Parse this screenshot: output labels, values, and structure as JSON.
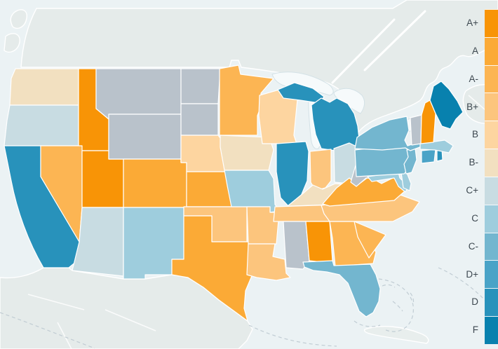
{
  "map": {
    "type": "choropleth",
    "region": "united-states-grades",
    "colors": {
      "ocean": "#ebf2f4",
      "foreign_land": "#e5ebea",
      "lakes": "#f6fafb",
      "no_data": "#b9c2cb",
      "state_border": "#ffffff"
    },
    "states": [
      {
        "id": "WA",
        "name": "Washington",
        "grade": "B-"
      },
      {
        "id": "OR",
        "name": "Oregon",
        "grade": "C+"
      },
      {
        "id": "CA",
        "name": "California",
        "grade": "D"
      },
      {
        "id": "ID",
        "name": "Idaho",
        "grade": "A+"
      },
      {
        "id": "NV",
        "name": "Nevada",
        "grade": "A-"
      },
      {
        "id": "UT",
        "name": "Utah",
        "grade": "A+"
      },
      {
        "id": "AZ",
        "name": "Arizona",
        "grade": "C+"
      },
      {
        "id": "MT",
        "name": "Montana",
        "grade": null
      },
      {
        "id": "WY",
        "name": "Wyoming",
        "grade": null
      },
      {
        "id": "CO",
        "name": "Colorado",
        "grade": "A"
      },
      {
        "id": "NM",
        "name": "New Mexico",
        "grade": "C"
      },
      {
        "id": "ND",
        "name": "North Dakota",
        "grade": null
      },
      {
        "id": "SD",
        "name": "South Dakota",
        "grade": null
      },
      {
        "id": "NE",
        "name": "Nebraska",
        "grade": "B"
      },
      {
        "id": "KS",
        "name": "Kansas",
        "grade": "A"
      },
      {
        "id": "OK",
        "name": "Oklahoma",
        "grade": "B+"
      },
      {
        "id": "TX",
        "name": "Texas",
        "grade": "A"
      },
      {
        "id": "MN",
        "name": "Minnesota",
        "grade": "A-"
      },
      {
        "id": "IA",
        "name": "Iowa",
        "grade": "B-"
      },
      {
        "id": "MO",
        "name": "Missouri",
        "grade": "C"
      },
      {
        "id": "AR",
        "name": "Arkansas",
        "grade": "B+"
      },
      {
        "id": "LA",
        "name": "Louisiana",
        "grade": "B+"
      },
      {
        "id": "WI",
        "name": "Wisconsin",
        "grade": "B"
      },
      {
        "id": "IL",
        "name": "Illinois",
        "grade": "D"
      },
      {
        "id": "MI",
        "name": "Michigan",
        "grade": "D"
      },
      {
        "id": "IN",
        "name": "Indiana",
        "grade": "B+"
      },
      {
        "id": "OH",
        "name": "Ohio",
        "grade": "C+"
      },
      {
        "id": "KY",
        "name": "Kentucky",
        "grade": "B-"
      },
      {
        "id": "TN",
        "name": "Tennessee",
        "grade": "B+"
      },
      {
        "id": "MS",
        "name": "Mississippi",
        "grade": null
      },
      {
        "id": "AL",
        "name": "Alabama",
        "grade": "A+"
      },
      {
        "id": "GA",
        "name": "Georgia",
        "grade": "A-"
      },
      {
        "id": "SC",
        "name": "South Carolina",
        "grade": "A-"
      },
      {
        "id": "NC",
        "name": "North Carolina",
        "grade": "B+"
      },
      {
        "id": "VA",
        "name": "Virginia",
        "grade": "A"
      },
      {
        "id": "WV",
        "name": "West Virginia",
        "grade": null
      },
      {
        "id": "MD",
        "name": "Maryland",
        "grade": "C"
      },
      {
        "id": "DE",
        "name": "Delaware",
        "grade": "C"
      },
      {
        "id": "PA",
        "name": "Pennsylvania",
        "grade": "C-"
      },
      {
        "id": "NJ",
        "name": "New Jersey",
        "grade": "C-"
      },
      {
        "id": "NY",
        "name": "New York",
        "grade": "C-"
      },
      {
        "id": "CT",
        "name": "Connecticut",
        "grade": "D+"
      },
      {
        "id": "RI",
        "name": "Rhode Island",
        "grade": "D"
      },
      {
        "id": "MA",
        "name": "Massachusetts",
        "grade": "C"
      },
      {
        "id": "VT",
        "name": "Vermont",
        "grade": null
      },
      {
        "id": "NH",
        "name": "New Hampshire",
        "grade": "A+"
      },
      {
        "id": "ME",
        "name": "Maine",
        "grade": "F"
      },
      {
        "id": "FL",
        "name": "Florida",
        "grade": "C-"
      }
    ]
  },
  "legend": {
    "items": [
      {
        "label": "A+",
        "color": "#f89406"
      },
      {
        "label": "A",
        "color": "#fbaa36"
      },
      {
        "label": "A-",
        "color": "#fcb553"
      },
      {
        "label": "B+",
        "color": "#fcc57d"
      },
      {
        "label": "B",
        "color": "#fdd5a0"
      },
      {
        "label": "B-",
        "color": "#f2e0c0"
      },
      {
        "label": "C+",
        "color": "#c8dce2"
      },
      {
        "label": "C",
        "color": "#9ecddd"
      },
      {
        "label": "C-",
        "color": "#73b6cf"
      },
      {
        "label": "D+",
        "color": "#4aa3c7"
      },
      {
        "label": "D",
        "color": "#2892bb"
      },
      {
        "label": "F",
        "color": "#0881ae"
      }
    ]
  }
}
